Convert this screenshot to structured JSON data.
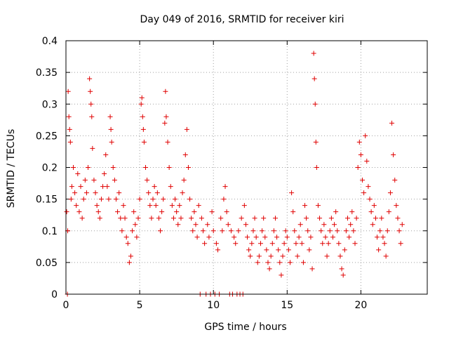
{
  "chart_data": {
    "type": "scatter",
    "title": "Day 049 of 2016, SRMTID for receiver kiri",
    "xlabel": "GPS time / hours",
    "ylabel": "SRMTID / TECUs",
    "xlim": [
      0,
      24.5
    ],
    "ylim": [
      0,
      0.4
    ],
    "xticks": [
      0,
      5,
      10,
      15,
      20
    ],
    "xtick_labels": [
      "0",
      "5",
      "10",
      "15",
      "20"
    ],
    "yticks": [
      0,
      0.05,
      0.1,
      0.15,
      0.2,
      0.25,
      0.3,
      0.35,
      0.4
    ],
    "ytick_labels": [
      "0",
      "0.05",
      "0.1",
      "0.15",
      "0.2",
      "0.25",
      "0.3",
      "0.35",
      "0.4"
    ],
    "grid": true,
    "marker": "+",
    "color": "#e00000",
    "series": [
      {
        "name": "SRMTID",
        "points": [
          [
            0.05,
            0.13
          ],
          [
            0.1,
            0.0
          ],
          [
            0.12,
            0.1
          ],
          [
            0.15,
            0.32
          ],
          [
            0.2,
            0.28
          ],
          [
            0.25,
            0.26
          ],
          [
            0.3,
            0.24
          ],
          [
            0.35,
            0.15
          ],
          [
            0.4,
            0.17
          ],
          [
            0.5,
            0.2
          ],
          [
            0.6,
            0.16
          ],
          [
            0.7,
            0.14
          ],
          [
            0.8,
            0.19
          ],
          [
            0.9,
            0.13
          ],
          [
            1.0,
            0.17
          ],
          [
            1.1,
            0.12
          ],
          [
            1.2,
            0.15
          ],
          [
            1.3,
            0.18
          ],
          [
            1.4,
            0.16
          ],
          [
            1.5,
            0.2
          ],
          [
            1.6,
            0.34
          ],
          [
            1.65,
            0.32
          ],
          [
            1.7,
            0.3
          ],
          [
            1.75,
            0.28
          ],
          [
            1.8,
            0.23
          ],
          [
            1.9,
            0.18
          ],
          [
            2.0,
            0.16
          ],
          [
            2.1,
            0.14
          ],
          [
            2.2,
            0.13
          ],
          [
            2.3,
            0.12
          ],
          [
            2.4,
            0.15
          ],
          [
            2.5,
            0.17
          ],
          [
            2.6,
            0.19
          ],
          [
            2.7,
            0.22
          ],
          [
            2.8,
            0.17
          ],
          [
            2.9,
            0.15
          ],
          [
            3.0,
            0.28
          ],
          [
            3.05,
            0.26
          ],
          [
            3.1,
            0.24
          ],
          [
            3.2,
            0.2
          ],
          [
            3.3,
            0.18
          ],
          [
            3.4,
            0.15
          ],
          [
            3.5,
            0.13
          ],
          [
            3.6,
            0.16
          ],
          [
            3.7,
            0.12
          ],
          [
            3.8,
            0.1
          ],
          [
            3.9,
            0.14
          ],
          [
            4.0,
            0.12
          ],
          [
            4.1,
            0.09
          ],
          [
            4.2,
            0.08
          ],
          [
            4.3,
            0.05
          ],
          [
            4.4,
            0.06
          ],
          [
            4.5,
            0.1
          ],
          [
            4.6,
            0.13
          ],
          [
            4.7,
            0.11
          ],
          [
            4.8,
            0.09
          ],
          [
            4.9,
            0.12
          ],
          [
            5.0,
            0.15
          ],
          [
            5.1,
            0.3
          ],
          [
            5.15,
            0.31
          ],
          [
            5.2,
            0.28
          ],
          [
            5.25,
            0.26
          ],
          [
            5.3,
            0.24
          ],
          [
            5.4,
            0.2
          ],
          [
            5.5,
            0.18
          ],
          [
            5.6,
            0.16
          ],
          [
            5.7,
            0.14
          ],
          [
            5.8,
            0.12
          ],
          [
            5.9,
            0.15
          ],
          [
            6.0,
            0.17
          ],
          [
            6.1,
            0.14
          ],
          [
            6.2,
            0.16
          ],
          [
            6.3,
            0.12
          ],
          [
            6.4,
            0.1
          ],
          [
            6.5,
            0.13
          ],
          [
            6.6,
            0.15
          ],
          [
            6.7,
            0.27
          ],
          [
            6.75,
            0.32
          ],
          [
            6.8,
            0.28
          ],
          [
            6.9,
            0.24
          ],
          [
            7.0,
            0.2
          ],
          [
            7.1,
            0.17
          ],
          [
            7.2,
            0.14
          ],
          [
            7.3,
            0.12
          ],
          [
            7.4,
            0.15
          ],
          [
            7.5,
            0.13
          ],
          [
            7.6,
            0.11
          ],
          [
            7.7,
            0.14
          ],
          [
            7.8,
            0.12
          ],
          [
            7.9,
            0.16
          ],
          [
            8.0,
            0.18
          ],
          [
            8.1,
            0.22
          ],
          [
            8.2,
            0.26
          ],
          [
            8.3,
            0.2
          ],
          [
            8.4,
            0.15
          ],
          [
            8.5,
            0.12
          ],
          [
            8.6,
            0.1
          ],
          [
            8.7,
            0.13
          ],
          [
            8.8,
            0.11
          ],
          [
            8.9,
            0.09
          ],
          [
            9.0,
            0.14
          ],
          [
            9.1,
            0.0
          ],
          [
            9.2,
            0.12
          ],
          [
            9.3,
            0.1
          ],
          [
            9.4,
            0.08
          ],
          [
            9.5,
            0.0
          ],
          [
            9.6,
            0.11
          ],
          [
            9.7,
            0.09
          ],
          [
            9.8,
            0.0
          ],
          [
            9.9,
            0.13
          ],
          [
            10.0,
            0.1
          ],
          [
            10.1,
            0.0
          ],
          [
            10.2,
            0.08
          ],
          [
            10.3,
            0.07
          ],
          [
            10.4,
            0.0
          ],
          [
            10.5,
            0.12
          ],
          [
            10.6,
            0.1
          ],
          [
            10.7,
            0.15
          ],
          [
            10.8,
            0.17
          ],
          [
            10.9,
            0.13
          ],
          [
            11.0,
            0.11
          ],
          [
            11.1,
            0.0
          ],
          [
            11.2,
            0.1
          ],
          [
            11.3,
            0.0
          ],
          [
            11.4,
            0.09
          ],
          [
            11.5,
            0.08
          ],
          [
            11.6,
            0.0
          ],
          [
            11.7,
            0.1
          ],
          [
            11.8,
            0.0
          ],
          [
            11.9,
            0.12
          ],
          [
            12.0,
            0.0
          ],
          [
            12.1,
            0.14
          ],
          [
            12.2,
            0.11
          ],
          [
            12.3,
            0.09
          ],
          [
            12.4,
            0.07
          ],
          [
            12.5,
            0.06
          ],
          [
            12.6,
            0.08
          ],
          [
            12.7,
            0.1
          ],
          [
            12.8,
            0.12
          ],
          [
            12.9,
            0.09
          ],
          [
            13.0,
            0.05
          ],
          [
            13.1,
            0.06
          ],
          [
            13.2,
            0.08
          ],
          [
            13.3,
            0.1
          ],
          [
            13.4,
            0.12
          ],
          [
            13.5,
            0.09
          ],
          [
            13.6,
            0.07
          ],
          [
            13.7,
            0.05
          ],
          [
            13.8,
            0.04
          ],
          [
            13.9,
            0.06
          ],
          [
            14.0,
            0.08
          ],
          [
            14.1,
            0.1
          ],
          [
            14.2,
            0.12
          ],
          [
            14.3,
            0.09
          ],
          [
            14.4,
            0.07
          ],
          [
            14.5,
            0.05
          ],
          [
            14.6,
            0.03
          ],
          [
            14.7,
            0.06
          ],
          [
            14.8,
            0.08
          ],
          [
            14.9,
            0.1
          ],
          [
            15.0,
            0.09
          ],
          [
            15.1,
            0.07
          ],
          [
            15.2,
            0.05
          ],
          [
            15.3,
            0.16
          ],
          [
            15.4,
            0.13
          ],
          [
            15.5,
            0.1
          ],
          [
            15.6,
            0.08
          ],
          [
            15.7,
            0.06
          ],
          [
            15.8,
            0.09
          ],
          [
            15.9,
            0.11
          ],
          [
            16.0,
            0.08
          ],
          [
            16.1,
            0.05
          ],
          [
            16.2,
            0.14
          ],
          [
            16.3,
            0.12
          ],
          [
            16.4,
            0.1
          ],
          [
            16.5,
            0.07
          ],
          [
            16.6,
            0.09
          ],
          [
            16.7,
            0.04
          ],
          [
            16.8,
            0.38
          ],
          [
            16.85,
            0.34
          ],
          [
            16.9,
            0.3
          ],
          [
            16.95,
            0.24
          ],
          [
            17.0,
            0.2
          ],
          [
            17.1,
            0.14
          ],
          [
            17.2,
            0.12
          ],
          [
            17.3,
            0.1
          ],
          [
            17.4,
            0.08
          ],
          [
            17.5,
            0.11
          ],
          [
            17.6,
            0.09
          ],
          [
            17.7,
            0.06
          ],
          [
            17.8,
            0.08
          ],
          [
            17.9,
            0.1
          ],
          [
            18.0,
            0.12
          ],
          [
            18.1,
            0.09
          ],
          [
            18.2,
            0.11
          ],
          [
            18.3,
            0.13
          ],
          [
            18.4,
            0.1
          ],
          [
            18.5,
            0.08
          ],
          [
            18.6,
            0.06
          ],
          [
            18.7,
            0.04
          ],
          [
            18.8,
            0.03
          ],
          [
            18.9,
            0.07
          ],
          [
            19.0,
            0.1
          ],
          [
            19.1,
            0.12
          ],
          [
            19.2,
            0.09
          ],
          [
            19.3,
            0.11
          ],
          [
            19.4,
            0.13
          ],
          [
            19.5,
            0.1
          ],
          [
            19.6,
            0.08
          ],
          [
            19.7,
            0.12
          ],
          [
            19.8,
            0.2
          ],
          [
            19.9,
            0.24
          ],
          [
            20.0,
            0.22
          ],
          [
            20.1,
            0.18
          ],
          [
            20.2,
            0.16
          ],
          [
            20.3,
            0.25
          ],
          [
            20.4,
            0.21
          ],
          [
            20.5,
            0.17
          ],
          [
            20.6,
            0.15
          ],
          [
            20.7,
            0.13
          ],
          [
            20.8,
            0.11
          ],
          [
            20.9,
            0.14
          ],
          [
            21.0,
            0.12
          ],
          [
            21.1,
            0.09
          ],
          [
            21.2,
            0.07
          ],
          [
            21.3,
            0.1
          ],
          [
            21.4,
            0.12
          ],
          [
            21.5,
            0.09
          ],
          [
            21.6,
            0.08
          ],
          [
            21.7,
            0.06
          ],
          [
            21.8,
            0.1
          ],
          [
            21.9,
            0.13
          ],
          [
            22.0,
            0.16
          ],
          [
            22.1,
            0.27
          ],
          [
            22.2,
            0.22
          ],
          [
            22.3,
            0.18
          ],
          [
            22.4,
            0.14
          ],
          [
            22.5,
            0.12
          ],
          [
            22.6,
            0.1
          ],
          [
            22.7,
            0.08
          ],
          [
            22.8,
            0.11
          ]
        ]
      }
    ]
  }
}
